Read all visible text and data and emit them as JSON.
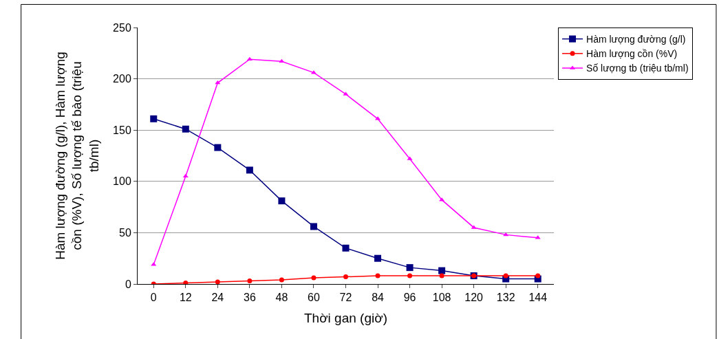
{
  "chart_data": {
    "type": "line",
    "xlabel": "Thời gan (giờ)",
    "ylabel": "Hàm lượng đường (g/l), Hàm lượng\ncồn (%V), Số lượng tế bào (triệu\ntb/ml)",
    "categories": [
      "0",
      "12",
      "24",
      "36",
      "48",
      "60",
      "72",
      "84",
      "96",
      "108",
      "120",
      "132",
      "144"
    ],
    "series": [
      {
        "name": "Hàm lượng đường (g/l)",
        "color": "#000080",
        "marker": "square",
        "values": [
          161,
          151,
          133,
          111,
          81,
          56,
          35,
          25,
          16,
          13,
          8,
          5,
          5
        ]
      },
      {
        "name": "Hàm lượng cồn (%V)",
        "color": "#ff0000",
        "marker": "circle",
        "values": [
          0,
          1,
          2,
          3,
          4,
          6,
          7,
          8,
          8,
          8,
          8,
          8,
          8
        ]
      },
      {
        "name": "Số lượng tb (triệu tb/ml)",
        "color": "#ff00ff",
        "marker": "triangle",
        "values": [
          19,
          105,
          196,
          219,
          217,
          206,
          185,
          161,
          122,
          82,
          55,
          48,
          45
        ]
      }
    ],
    "ylim": [
      0,
      250
    ],
    "yticks": [
      0,
      50,
      100,
      150,
      200,
      250
    ],
    "grid": "y",
    "legend": "top right"
  }
}
